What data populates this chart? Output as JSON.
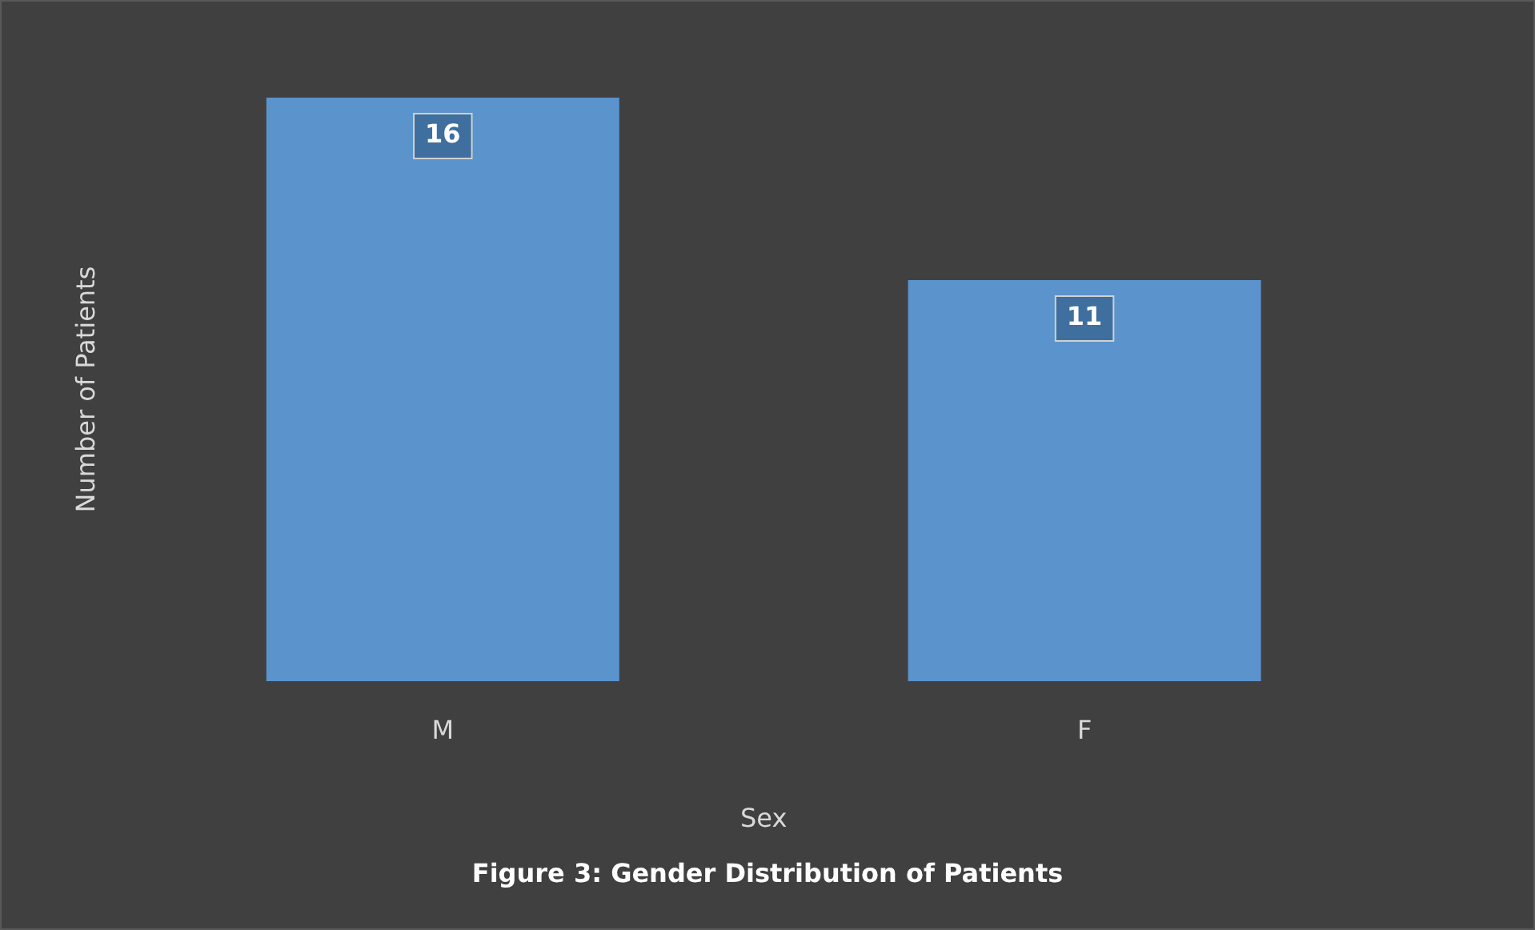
{
  "chart_data": {
    "type": "bar",
    "categories": [
      "M",
      "F"
    ],
    "values": [
      16,
      11
    ],
    "color": "#5b93cc",
    "xlabel": "Sex",
    "ylabel": "Number of Patients",
    "data_labels": true,
    "annotations": [
      "Figure 3: Gender Distribution of Patients"
    ]
  }
}
